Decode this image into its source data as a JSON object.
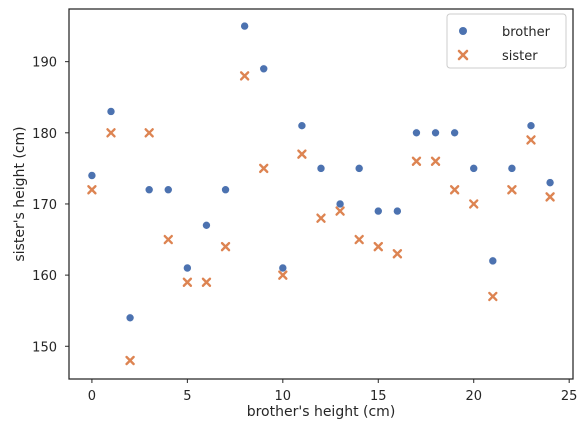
{
  "chart_data": {
    "type": "scatter",
    "xlabel": "brother's height (cm)",
    "ylabel": "sister's height (cm)",
    "xlim": [
      -1.2,
      25.2
    ],
    "ylim": [
      145.4,
      197.4
    ],
    "xticks": [
      0,
      5,
      10,
      15,
      20,
      25
    ],
    "yticks": [
      150,
      160,
      170,
      180,
      190
    ],
    "grid": false,
    "legend_position": "top-right",
    "x": [
      0,
      1,
      2,
      3,
      4,
      5,
      6,
      7,
      8,
      9,
      10,
      11,
      12,
      13,
      14,
      15,
      16,
      17,
      18,
      19,
      20,
      21,
      22,
      23,
      24
    ],
    "series": [
      {
        "name": "brother",
        "marker": "circle",
        "color": "#4c72b0",
        "values": [
          174,
          183,
          154,
          172,
          172,
          161,
          167,
          172,
          195,
          189,
          161,
          181,
          175,
          170,
          175,
          169,
          169,
          180,
          180,
          180,
          175,
          162,
          175,
          181,
          173
        ]
      },
      {
        "name": "sister",
        "marker": "x",
        "color": "#dd8452",
        "values": [
          172,
          180,
          148,
          180,
          165,
          159,
          159,
          164,
          188,
          175,
          160,
          177,
          168,
          169,
          165,
          164,
          163,
          176,
          176,
          172,
          170,
          157,
          172,
          179,
          171
        ]
      }
    ]
  }
}
